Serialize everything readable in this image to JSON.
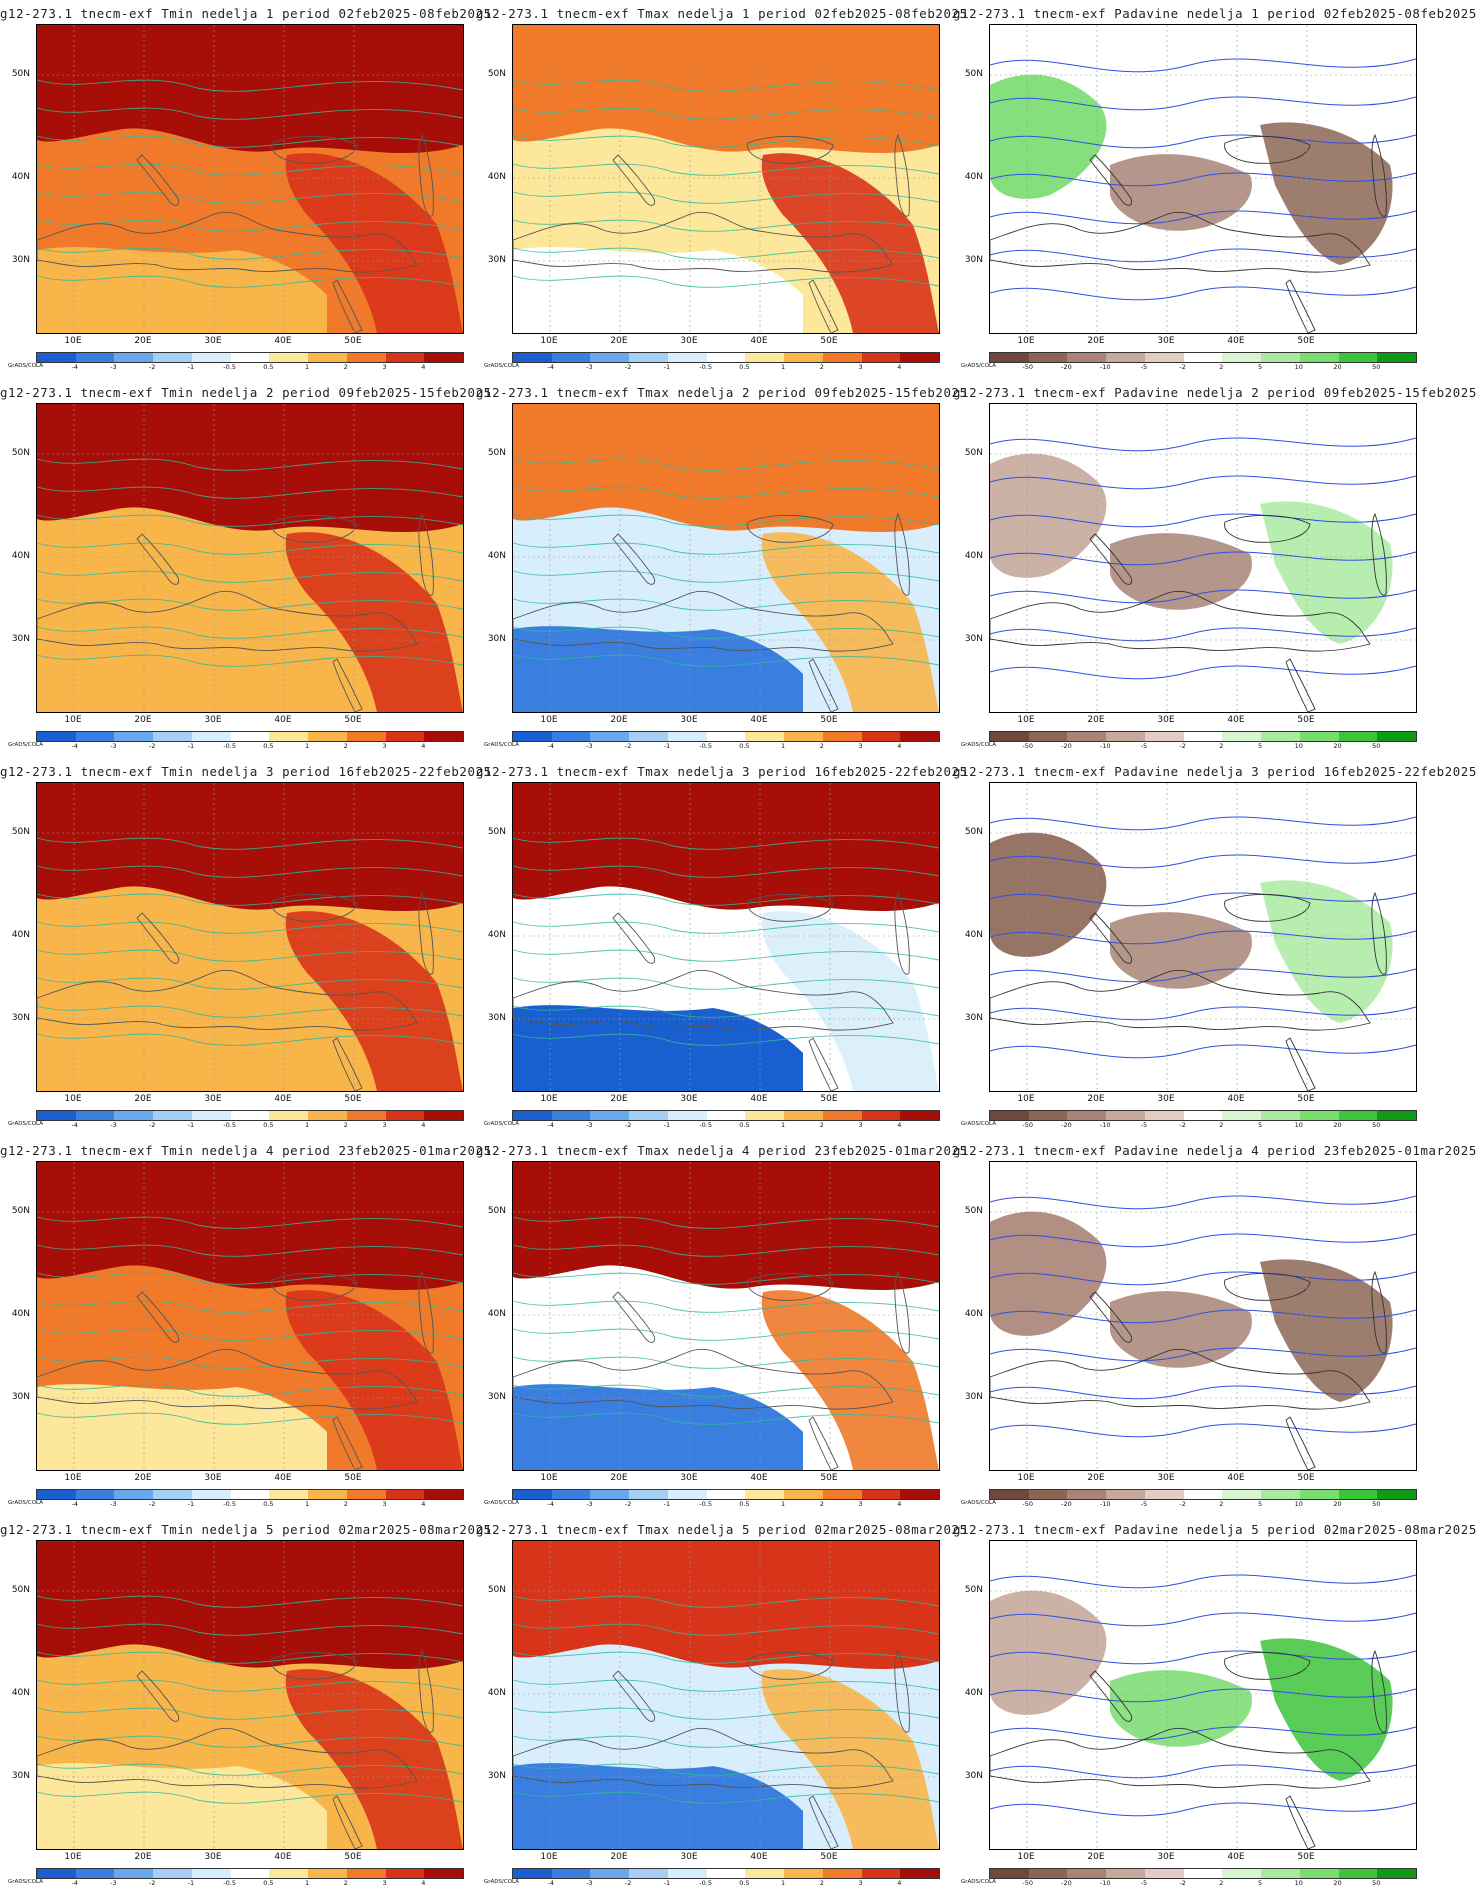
{
  "grid_label": "GrADS/COLA",
  "axes": {
    "lat_labels": [
      "50N",
      "40N",
      "30N"
    ],
    "lon_labels": [
      "10E",
      "20E",
      "30E",
      "40E",
      "50E"
    ]
  },
  "colorbars": {
    "temp": {
      "labels": [
        "-4",
        "-3",
        "-2",
        "-1",
        "-0.5",
        "0.5",
        "1",
        "2",
        "3",
        "4"
      ],
      "colors": [
        "#1a5fd0",
        "#3a7fe0",
        "#6aa8ee",
        "#a6cff6",
        "#d8eefc",
        "#ffffff",
        "#fce79a",
        "#f8b54a",
        "#f07a2a",
        "#d8341a",
        "#a80e08"
      ]
    },
    "precip": {
      "labels": [
        "-50",
        "-20",
        "-10",
        "-5",
        "-2",
        "2",
        "5",
        "10",
        "20",
        "50"
      ],
      "colors": [
        "#6e4a3c",
        "#8c6655",
        "#a88476",
        "#c6a89c",
        "#e2cdc4",
        "#ffffff",
        "#d8f4d0",
        "#aaeaa0",
        "#78dc6e",
        "#3cc43a",
        "#0e9a14"
      ]
    }
  },
  "weeks": [
    {
      "week": "1",
      "titles": [
        "g12-273.1 tnecm-exf Tmin nedelja 1 period 02feb2025-08feb2025",
        "g12-273.1 tnecm-exf Tmax nedelja 1 period 02feb2025-08feb2025",
        "g12-273.1 tnecm-exf Padavine nedelja 1 period 02feb2025-08feb2025"
      ],
      "tmin": {
        "base": "#f07a2a",
        "north": "#a80e08",
        "south": "#f8b54a",
        "east": "#d8341a"
      },
      "tmax": {
        "base": "#fce79a",
        "north": "#f07a2a",
        "south": "#ffffff",
        "east": "#d8341a"
      },
      "precip": {
        "base": "#ffffff",
        "west": "#78dc6e",
        "center": "#a88476",
        "east": "#8c6655"
      }
    },
    {
      "week": "2",
      "titles": [
        "g12-273.1 tnecm-exf Tmin nedelja 2 period 09feb2025-15feb2025",
        "g12-273.1 tnecm-exf Tmax nedelja 2 period 09feb2025-15feb2025",
        "g12-273.1 tnecm-exf Padavine nedelja 2 period 09feb2025-15feb2025"
      ],
      "tmin": {
        "base": "#f8b54a",
        "north": "#a80e08",
        "south": "#f8b54a",
        "east": "#d8341a"
      },
      "tmax": {
        "base": "#d8eefc",
        "north": "#f07a2a",
        "south": "#3a7fe0",
        "east": "#f8b54a"
      },
      "precip": {
        "base": "#ffffff",
        "west": "#c6a89c",
        "center": "#a88476",
        "east": "#aaeaa0"
      }
    },
    {
      "week": "3",
      "titles": [
        "g12-273.1 tnecm-exf Tmin nedelja 3 period 16feb2025-22feb2025",
        "g12-273.1 tnecm-exf Tmax nedelja 3 period 16feb2025-22feb2025",
        "g12-273.1 tnecm-exf Padavine nedelja 3 period 16feb2025-22feb2025"
      ],
      "tmin": {
        "base": "#f8b54a",
        "north": "#a80e08",
        "south": "#f8b54a",
        "east": "#d8341a"
      },
      "tmax": {
        "base": "#ffffff",
        "north": "#a80e08",
        "south": "#1a5fd0",
        "east": "#d8eefc"
      },
      "precip": {
        "base": "#ffffff",
        "west": "#8c6655",
        "center": "#a88476",
        "east": "#aaeaa0"
      }
    },
    {
      "week": "4",
      "titles": [
        "g12-273.1 tnecm-exf Tmin nedelja 4 period 23feb2025-01mar2025",
        "g12-273.1 tnecm-exf Tmax nedelja 4 period 23feb2025-01mar2025",
        "g12-273.1 tnecm-exf Padavine nedelja 4 period 23feb2025-01mar2025"
      ],
      "tmin": {
        "base": "#f07a2a",
        "north": "#a80e08",
        "south": "#fce79a",
        "east": "#d8341a"
      },
      "tmax": {
        "base": "#ffffff",
        "north": "#a80e08",
        "south": "#3a7fe0",
        "east": "#f07a2a"
      },
      "precip": {
        "base": "#ffffff",
        "west": "#a88476",
        "center": "#a88476",
        "east": "#8c6655"
      }
    },
    {
      "week": "5",
      "titles": [
        "g12-273.1 tnecm-exf Tmin nedelja 5 period 02mar2025-08mar2025",
        "g12-273.1 tnecm-exf Tmax nedelja 5 period 02mar2025-08mar2025",
        "g12-273.1 tnecm-exf Padavine nedelja 5 period 02mar2025-08mar2025"
      ],
      "tmin": {
        "base": "#f8b54a",
        "north": "#a80e08",
        "south": "#fce79a",
        "east": "#d8341a"
      },
      "tmax": {
        "base": "#d8eefc",
        "north": "#d8341a",
        "south": "#3a7fe0",
        "east": "#f8b54a"
      },
      "precip": {
        "base": "#ffffff",
        "west": "#c6a89c",
        "center": "#78dc6e",
        "east": "#3cc43a"
      }
    }
  ]
}
